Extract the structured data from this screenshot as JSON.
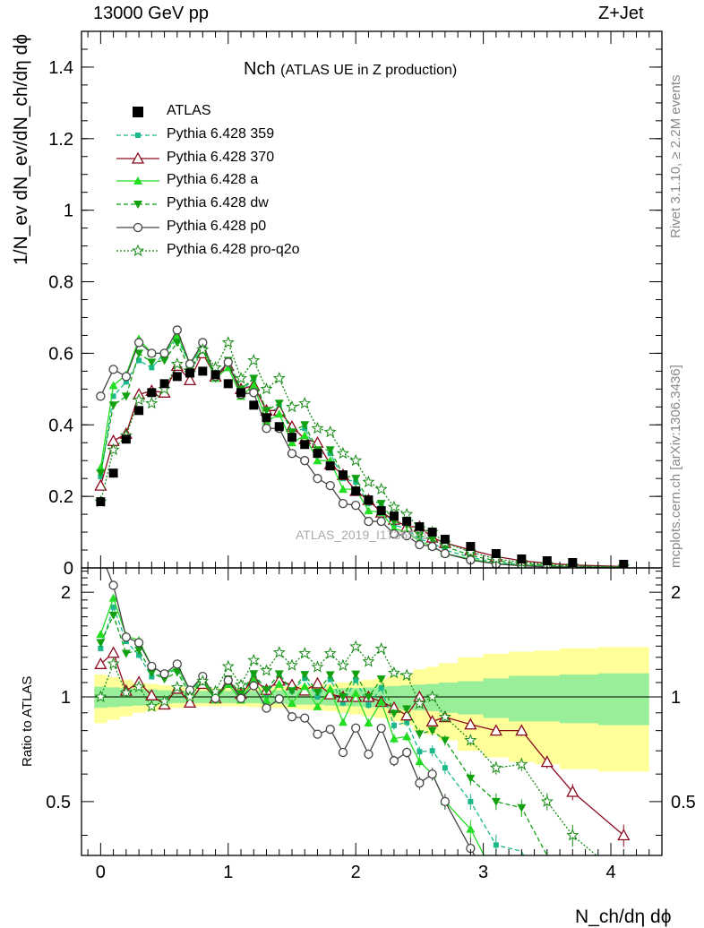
{
  "header": {
    "energy": "13000 GeV pp",
    "process": "Z+Jet",
    "rivet": "Rivet 3.1.10, ≥ 2.2M events",
    "site": "mcplots.cern.ch [arXiv:1306.3436]",
    "watermark": "ATLAS_2019_I1736531"
  },
  "title": {
    "main": "Nch",
    "sub": "(ATLAS UE in Z production)"
  },
  "axes": {
    "ylabel_top": "1/N_ev dN_ev/dN_ch/dη dϕ",
    "ylabel_bottom": "Ratio to ATLAS",
    "xlabel": "N_ch/dη dϕ"
  },
  "legend": [
    {
      "label": "ATLAS",
      "color": "#000000",
      "marker": "square-filled",
      "dash": "none"
    },
    {
      "label": "Pythia 6.428 359",
      "color": "#1ab88a",
      "marker": "square-filled-small",
      "dash": "dashed"
    },
    {
      "label": "Pythia 6.428 370",
      "color": "#8b0a1f",
      "marker": "triangle-open",
      "dash": "solid"
    },
    {
      "label": "Pythia 6.428 a",
      "color": "#22dd22",
      "marker": "triangle-filled",
      "dash": "solid"
    },
    {
      "label": "Pythia 6.428 dw",
      "color": "#10a010",
      "marker": "triangle-down-filled",
      "dash": "dashed"
    },
    {
      "label": "Pythia 6.428 p0",
      "color": "#444444",
      "marker": "circle-open",
      "dash": "solid"
    },
    {
      "label": "Pythia 6.428 pro-q2o",
      "color": "#158a15",
      "marker": "star",
      "dash": "dotted"
    }
  ],
  "chart_data": {
    "type": "line",
    "x": [
      0,
      0.1,
      0.2,
      0.3,
      0.4,
      0.5,
      0.6,
      0.7,
      0.8,
      0.9,
      1.0,
      1.1,
      1.2,
      1.3,
      1.4,
      1.5,
      1.6,
      1.7,
      1.8,
      1.9,
      2.0,
      2.1,
      2.2,
      2.3,
      2.4,
      2.5,
      2.6,
      2.7,
      2.9,
      3.1,
      3.3,
      3.5,
      3.7,
      4.1
    ],
    "xlim": [
      -0.15,
      4.4
    ],
    "ylim_top": [
      0,
      1.5
    ],
    "ylim_bottom": [
      0.35,
      2.35
    ],
    "xticks": [
      "0",
      "1",
      "2",
      "3",
      "4"
    ],
    "yticks_top": [
      "0",
      "0.2",
      "0.4",
      "0.6",
      "0.8",
      "1",
      "1.2",
      "1.4"
    ],
    "yticks_bottom": [
      "0.5",
      "1",
      "2"
    ],
    "series": [
      {
        "name": "ATLAS",
        "values": [
          0.185,
          0.265,
          0.36,
          0.44,
          0.49,
          0.515,
          0.535,
          0.545,
          0.55,
          0.54,
          0.515,
          0.49,
          0.455,
          0.42,
          0.395,
          0.365,
          0.345,
          0.32,
          0.285,
          0.26,
          0.215,
          0.19,
          0.16,
          0.145,
          0.13,
          0.115,
          0.1,
          0.08,
          0.06,
          0.04,
          0.025,
          0.02,
          0.015,
          0.01
        ]
      },
      {
        "name": "Pythia 6.428 359",
        "values": [
          0.255,
          0.48,
          0.52,
          0.58,
          0.56,
          0.6,
          0.64,
          0.57,
          0.61,
          0.53,
          0.57,
          0.49,
          0.53,
          0.43,
          0.45,
          0.38,
          0.39,
          0.32,
          0.32,
          0.25,
          0.24,
          0.18,
          0.17,
          0.12,
          0.11,
          0.08,
          0.07,
          0.05,
          0.03,
          0.015,
          0.009,
          0.005,
          0.003,
          0.001
        ]
      },
      {
        "name": "Pythia 6.428 370",
        "values": [
          0.23,
          0.355,
          0.375,
          0.485,
          0.495,
          0.49,
          0.565,
          0.525,
          0.6,
          0.535,
          0.565,
          0.5,
          0.51,
          0.44,
          0.44,
          0.395,
          0.36,
          0.35,
          0.29,
          0.26,
          0.215,
          0.19,
          0.155,
          0.135,
          0.115,
          0.115,
          0.085,
          0.07,
          0.05,
          0.032,
          0.02,
          0.013,
          0.008,
          0.004
        ]
      },
      {
        "name": "Pythia 6.428 a",
        "values": [
          0.28,
          0.51,
          0.54,
          0.64,
          0.6,
          0.6,
          0.65,
          0.57,
          0.62,
          0.53,
          0.56,
          0.48,
          0.51,
          0.41,
          0.43,
          0.35,
          0.37,
          0.3,
          0.3,
          0.22,
          0.22,
          0.16,
          0.155,
          0.11,
          0.1,
          0.075,
          0.06,
          0.04,
          0.025,
          0.012,
          0.007,
          0.004,
          0.002,
          0.001
        ]
      },
      {
        "name": "Pythia 6.428 dw",
        "values": [
          0.265,
          0.455,
          0.48,
          0.6,
          0.575,
          0.58,
          0.63,
          0.555,
          0.61,
          0.53,
          0.58,
          0.5,
          0.53,
          0.44,
          0.46,
          0.38,
          0.4,
          0.33,
          0.33,
          0.26,
          0.25,
          0.19,
          0.18,
          0.13,
          0.12,
          0.09,
          0.08,
          0.06,
          0.035,
          0.02,
          0.012,
          0.007,
          0.004,
          0.002
        ]
      },
      {
        "name": "Pythia 6.428 p0",
        "values": [
          0.48,
          0.555,
          0.535,
          0.63,
          0.6,
          0.6,
          0.665,
          0.57,
          0.63,
          0.535,
          0.575,
          0.485,
          0.49,
          0.39,
          0.39,
          0.32,
          0.3,
          0.25,
          0.23,
          0.18,
          0.175,
          0.13,
          0.13,
          0.095,
          0.09,
          0.065,
          0.06,
          0.04,
          0.022,
          0.011,
          0.006,
          0.003,
          0.002,
          0.001
        ]
      },
      {
        "name": "Pythia 6.428 pro-q2o",
        "values": [
          0.185,
          0.33,
          0.37,
          0.47,
          0.46,
          0.5,
          0.57,
          0.545,
          0.61,
          0.56,
          0.63,
          0.53,
          0.58,
          0.5,
          0.53,
          0.45,
          0.46,
          0.39,
          0.38,
          0.32,
          0.3,
          0.24,
          0.22,
          0.17,
          0.15,
          0.11,
          0.1,
          0.07,
          0.045,
          0.025,
          0.016,
          0.01,
          0.006,
          0.003
        ]
      }
    ],
    "band_inner_halfwidth": [
      0.07,
      0.065,
      0.06,
      0.055,
      0.05,
      0.045,
      0.04,
      0.04,
      0.04,
      0.04,
      0.04,
      0.04,
      0.04,
      0.045,
      0.045,
      0.05,
      0.05,
      0.05,
      0.055,
      0.06,
      0.06,
      0.065,
      0.07,
      0.075,
      0.08,
      0.085,
      0.09,
      0.1,
      0.11,
      0.13,
      0.15,
      0.15,
      0.16,
      0.17
    ],
    "band_outer_halfwidth": [
      0.16,
      0.14,
      0.12,
      0.1,
      0.09,
      0.08,
      0.07,
      0.065,
      0.06,
      0.06,
      0.06,
      0.06,
      0.065,
      0.07,
      0.07,
      0.075,
      0.08,
      0.085,
      0.09,
      0.1,
      0.11,
      0.12,
      0.13,
      0.15,
      0.17,
      0.2,
      0.22,
      0.25,
      0.3,
      0.33,
      0.35,
      0.36,
      0.38,
      0.39
    ]
  }
}
